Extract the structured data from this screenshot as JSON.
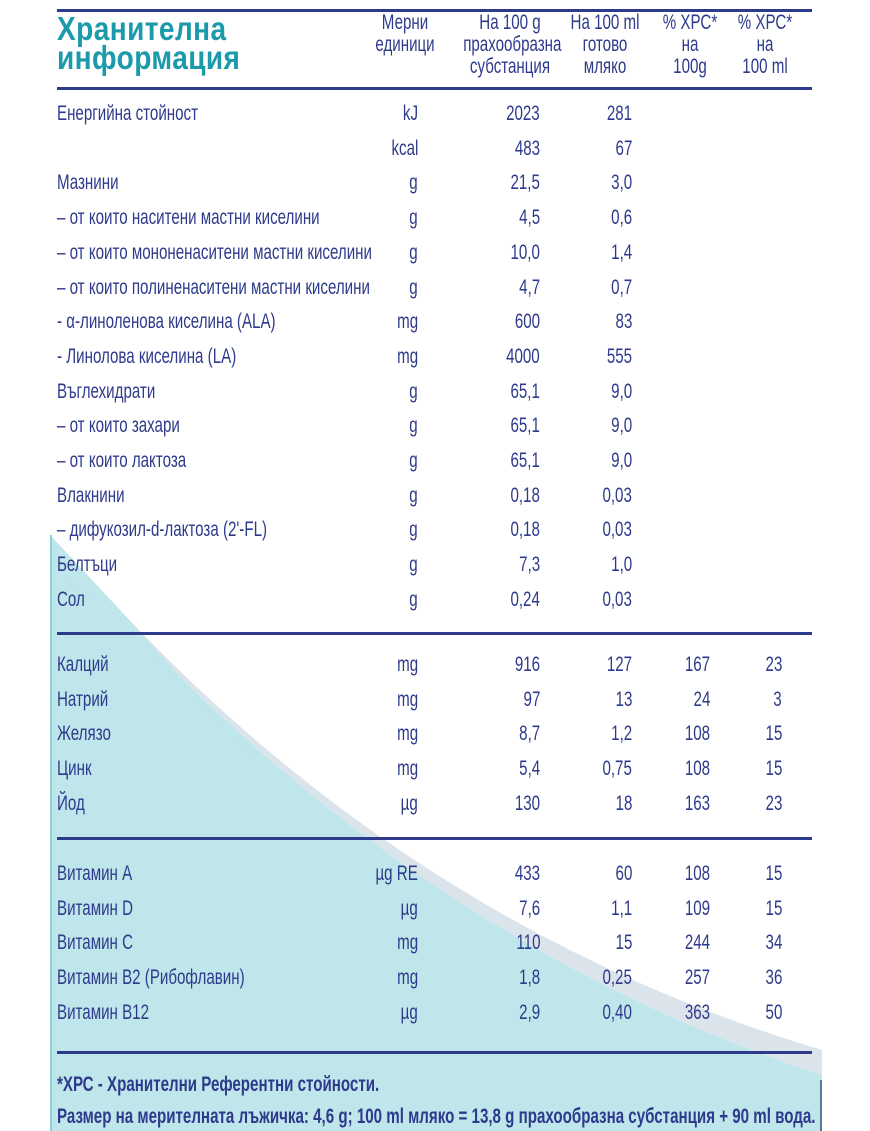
{
  "title": {
    "line1": "Хранителна",
    "line2": "информация"
  },
  "headers": {
    "units": [
      "Мерни",
      "единици"
    ],
    "per100g": [
      "На 100 g",
      "прахообразна",
      "субстанция"
    ],
    "per100ml": [
      "На 100 ml",
      "готово",
      "мляко"
    ],
    "rda100g": [
      "% ХРС*",
      "на",
      "100g"
    ],
    "rda100ml": [
      "% ХРС*",
      "на",
      "100 ml"
    ]
  },
  "sections": [
    {
      "rows": [
        [
          "Енергийна стойност",
          "kJ",
          "2023",
          "281",
          "",
          ""
        ],
        [
          "",
          "kcal",
          "483",
          "67",
          "",
          ""
        ],
        [
          "Мазнини",
          "g",
          "21,5",
          "3,0",
          "",
          ""
        ],
        [
          "–  от които наситени мастни киселини",
          "g",
          "4,5",
          "0,6",
          "",
          ""
        ],
        [
          "– от които мононенаситени мастни киселини",
          "g",
          "10,0",
          "1,4",
          "",
          ""
        ],
        [
          "– от които полиненаситени мастни киселини",
          "g",
          "4,7",
          "0,7",
          "",
          ""
        ],
        [
          "-  α-линоленова киселина (ALA)",
          "mg",
          "600",
          "83",
          "",
          ""
        ],
        [
          "-  Линолова киселина (LA)",
          "mg",
          "4000",
          "555",
          "",
          ""
        ],
        [
          "Въглехидрати",
          "g",
          "65,1",
          "9,0",
          "",
          ""
        ],
        [
          "– от които захари",
          "g",
          "65,1",
          "9,0",
          "",
          ""
        ],
        [
          "– от които лактоза",
          "g",
          "65,1",
          "9,0",
          "",
          ""
        ],
        [
          "Влакнини",
          "g",
          "0,18",
          "0,03",
          "",
          ""
        ],
        [
          "– дифукозил-d-лактоза (2'-FL)",
          "g",
          "0,18",
          "0,03",
          "",
          ""
        ],
        [
          "Белтъци",
          "g",
          "7,3",
          "1,0",
          "",
          ""
        ],
        [
          "Сол",
          "g",
          "0,24",
          "0,03",
          "",
          ""
        ]
      ]
    },
    {
      "rows": [
        [
          "Калций",
          "mg",
          "916",
          "127",
          "167",
          "23"
        ],
        [
          "Натрий",
          "mg",
          "97",
          "13",
          "24",
          "3"
        ],
        [
          "Желязо",
          "mg",
          "8,7",
          "1,2",
          "108",
          "15"
        ],
        [
          "Цинк",
          "mg",
          "5,4",
          "0,75",
          "108",
          "15"
        ],
        [
          "Йод",
          "µg",
          "130",
          "18",
          "163",
          "23"
        ]
      ]
    },
    {
      "rows": [
        [
          "Витамин A",
          "µg RE",
          "433",
          "60",
          "108",
          "15"
        ],
        [
          "Витамин D",
          "µg",
          "7,6",
          "1,1",
          "109",
          "15"
        ],
        [
          "Витамин C",
          "mg",
          "110",
          "15",
          "244",
          "34"
        ],
        [
          "Витамин B2 (Рибофлавин)",
          "mg",
          "1,8",
          "0,25",
          "257",
          "36"
        ],
        [
          "Витамин B12",
          "µg",
          "2,9",
          "0,40",
          "363",
          "50"
        ]
      ]
    }
  ],
  "footer": {
    "note": "*ХРС - Хранителни Референтни стойности.",
    "scoop": "Размер на мерителната лъжичка: 4,6 g; 100 ml мляко = 13,8 g прахообразна субстанция + 90 ml вода."
  },
  "colors": {
    "navy": "#2e3a8c",
    "teal": "#1a9aab",
    "panel": "#bfe6ea",
    "band": "#d3dde6"
  }
}
